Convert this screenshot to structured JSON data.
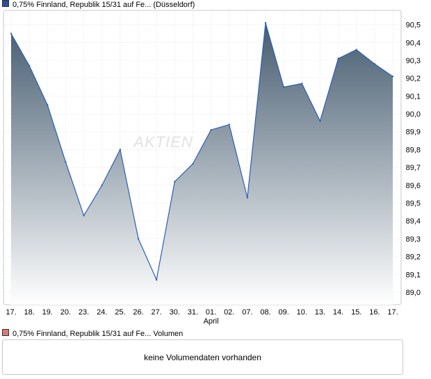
{
  "price_legend": {
    "label": "0,75% Finnland, Republik 15/31 auf Fe... (Düsseldorf)",
    "color": "#2c4f9e"
  },
  "volume_legend": {
    "label": "0,75% Finnland, Republik 15/31 auf Fe... Volumen",
    "color": "#d87a7a"
  },
  "volume_panel": {
    "message": "keine Volumendaten vorhanden"
  },
  "chart_data": {
    "type": "area",
    "x": [
      "17.",
      "18.",
      "19.",
      "20.",
      "23.",
      "24.",
      "25.",
      "26.",
      "27.",
      "30.",
      "31.",
      "01.",
      "02.",
      "07.",
      "08.",
      "09.",
      "10.",
      "13.",
      "14.",
      "15.",
      "16.",
      "17."
    ],
    "month_label": "April",
    "month_label_at": "01.",
    "values": [
      90.45,
      90.27,
      90.05,
      89.73,
      89.43,
      89.6,
      89.8,
      89.3,
      89.07,
      89.62,
      89.72,
      89.91,
      89.94,
      89.53,
      90.51,
      90.15,
      90.17,
      89.96,
      90.31,
      90.36,
      90.28,
      90.21
    ],
    "ylim": [
      88.93,
      90.58
    ],
    "yticks": [
      89.0,
      89.1,
      89.2,
      89.3,
      89.4,
      89.5,
      89.6,
      89.7,
      89.8,
      89.9,
      90.0,
      90.1,
      90.2,
      90.3,
      90.4,
      90.5
    ],
    "ytick_labels": [
      "89,0",
      "89,1",
      "89,2",
      "89,3",
      "89,4",
      "89,5",
      "89,6",
      "89,7",
      "89,8",
      "89,9",
      "90,0",
      "90,1",
      "90,2",
      "90,3",
      "90,4",
      "90,5"
    ],
    "grid": true,
    "watermark": "AKTIEN",
    "line_color": "#2c5fb4",
    "fill_top_color": "#465c70",
    "fill_bottom_color": "#ffffff"
  }
}
